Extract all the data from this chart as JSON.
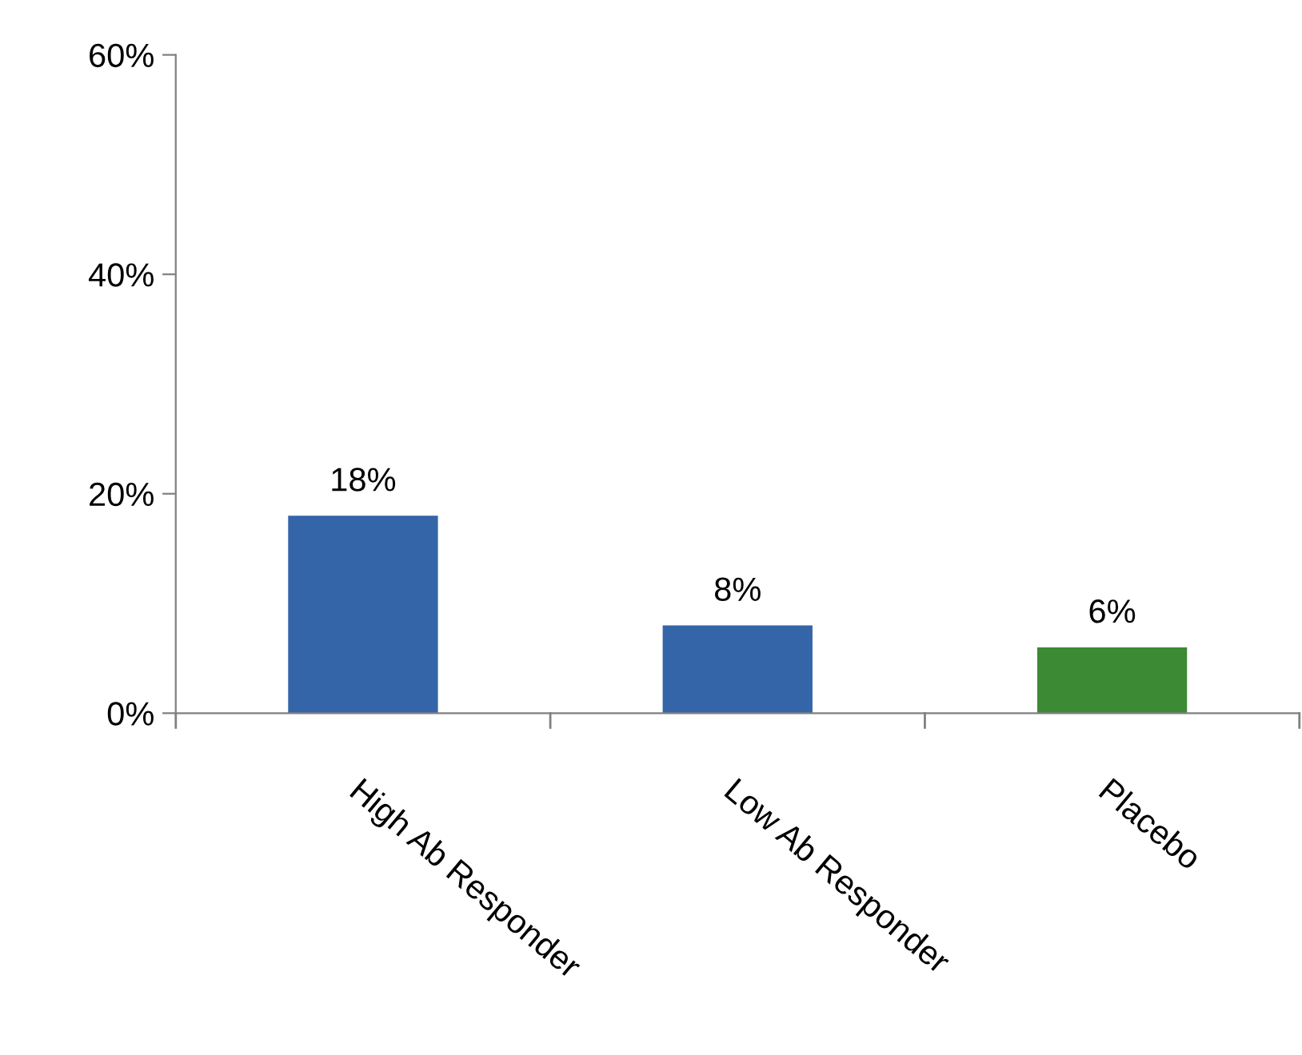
{
  "chart_data": {
    "type": "bar",
    "categories": [
      "High Ab Responder",
      "Low Ab Responder",
      "Placebo"
    ],
    "values": [
      18,
      8,
      6
    ],
    "colors": [
      "#3465a8",
      "#3465a8",
      "#3c8a34"
    ],
    "value_labels": [
      "18%",
      "8%",
      "6%"
    ],
    "ylim": [
      0,
      60
    ],
    "yticks": [
      {
        "value": 0,
        "label": "0%"
      },
      {
        "value": 20,
        "label": "20%"
      },
      {
        "value": 40,
        "label": "40%"
      },
      {
        "value": 60,
        "label": "60%"
      }
    ],
    "grid": false,
    "legend": false
  }
}
